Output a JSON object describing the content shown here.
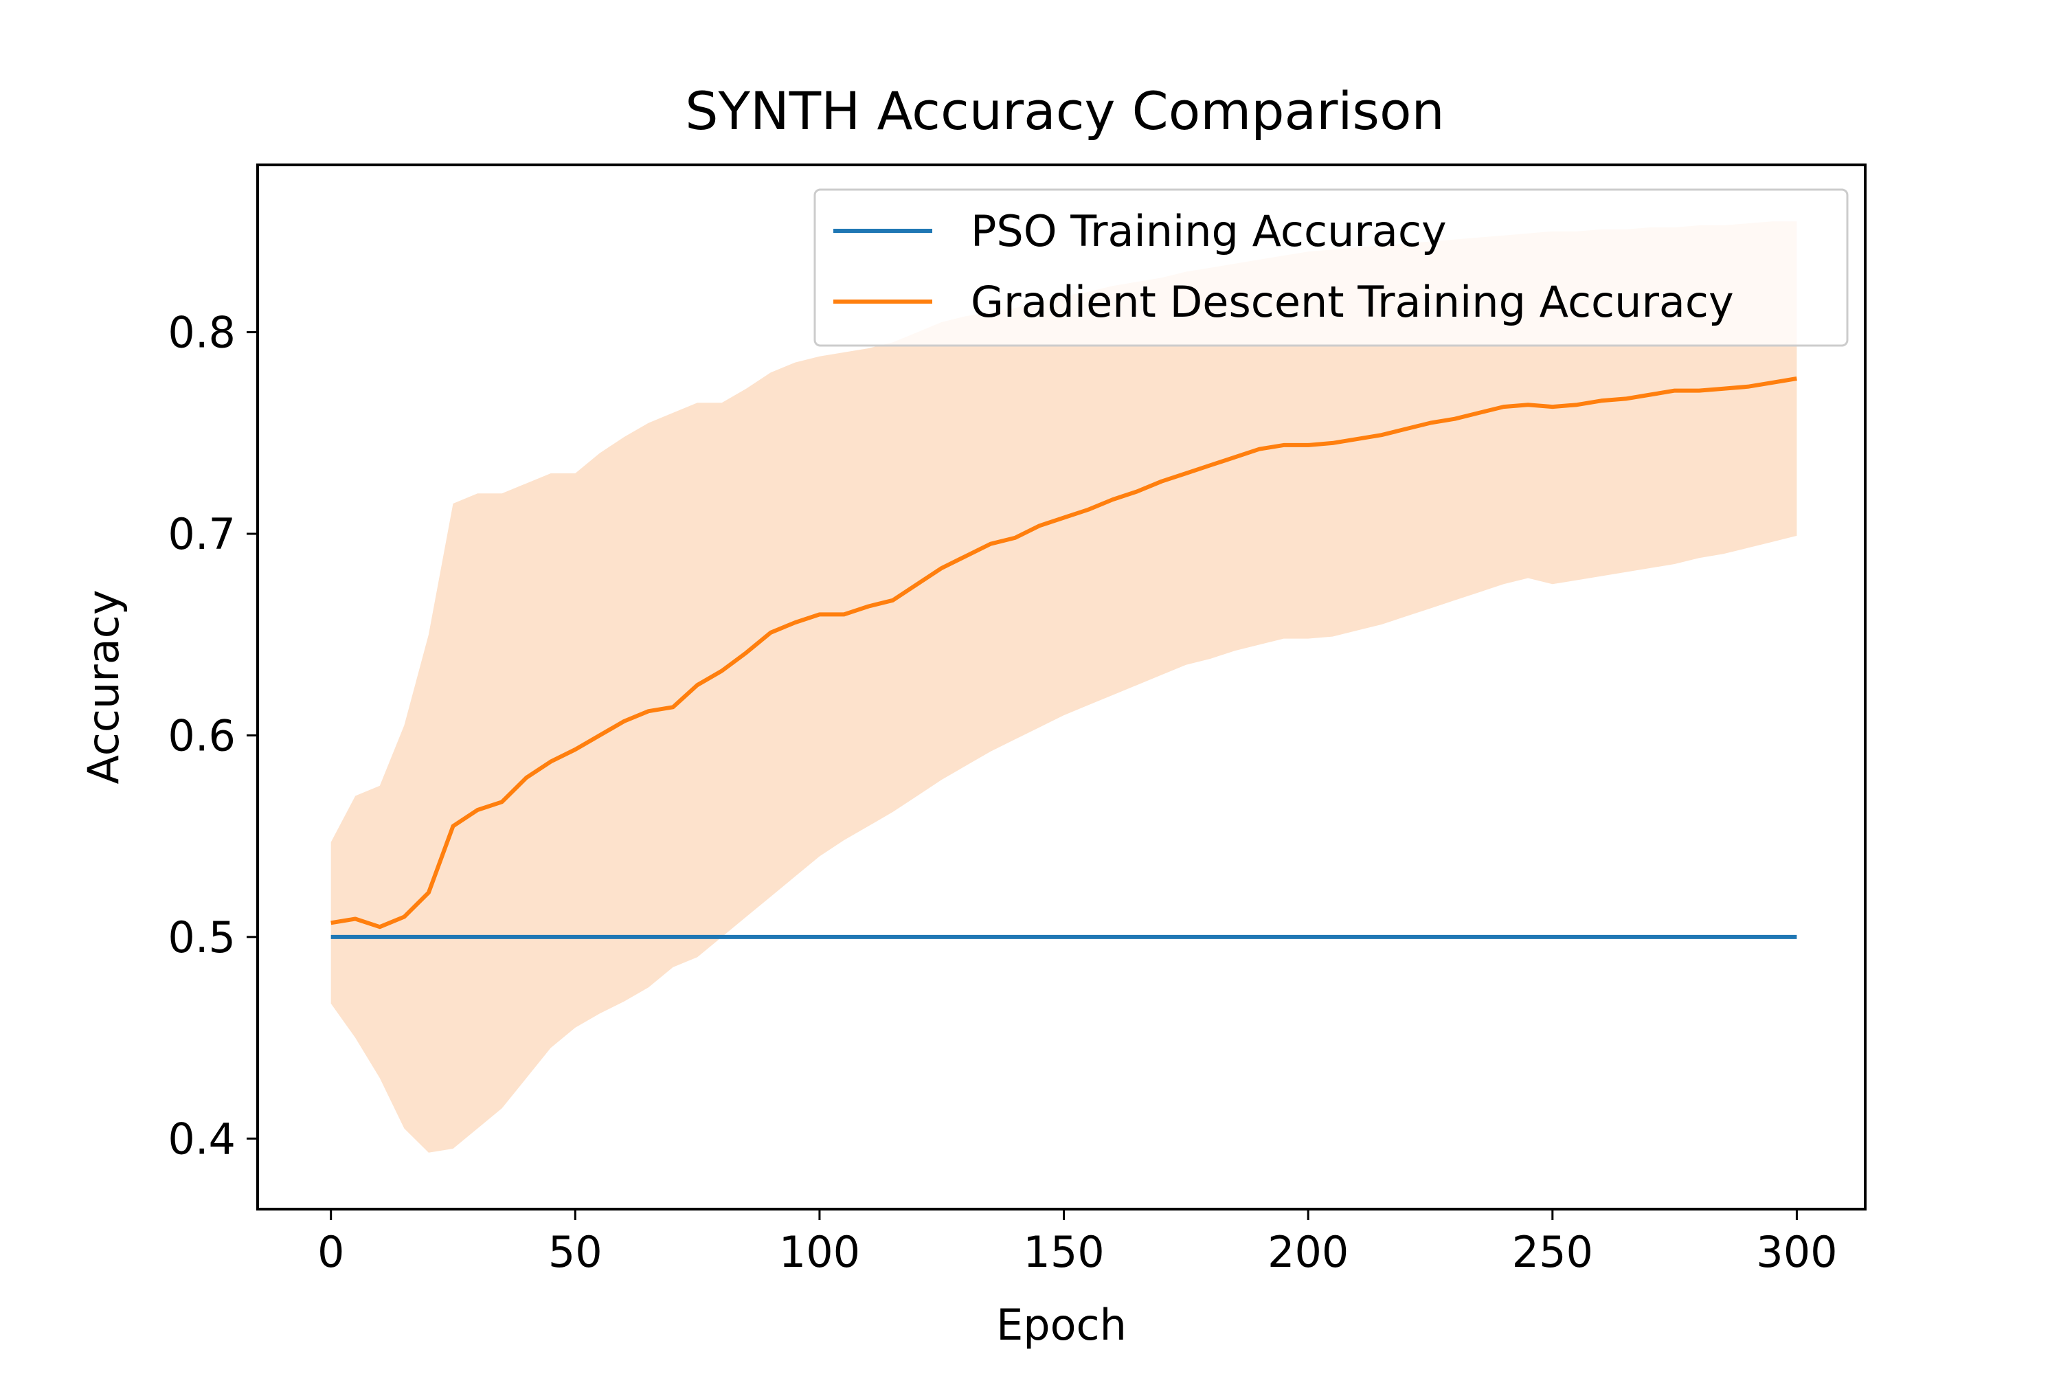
{
  "chart_data": {
    "type": "line",
    "title": "SYNTH Accuracy Comparison",
    "xlabel": "Epoch",
    "ylabel": "Accuracy",
    "xlim": [
      -15,
      314
    ],
    "ylim": [
      0.365,
      0.883
    ],
    "xticks": [
      0,
      50,
      100,
      150,
      200,
      250,
      300
    ],
    "yticks": [
      0.4,
      0.5,
      0.6,
      0.7,
      0.8
    ],
    "xtick_labels": [
      "0",
      "50",
      "100",
      "150",
      "200",
      "250",
      "300"
    ],
    "ytick_labels": [
      "0.4",
      "0.5",
      "0.6",
      "0.7",
      "0.8"
    ],
    "grid": false,
    "legend_position": "top-right",
    "series": [
      {
        "name": "PSO Training Accuracy",
        "color": "#1f77b4",
        "x": [
          0,
          300
        ],
        "y": [
          0.5,
          0.5
        ]
      },
      {
        "name": "Gradient Descent Training Accuracy",
        "color": "#ff7f0e",
        "band_color": "#fde2cc",
        "x": [
          0,
          5,
          10,
          15,
          20,
          25,
          30,
          35,
          40,
          45,
          50,
          55,
          60,
          65,
          70,
          75,
          80,
          85,
          90,
          95,
          100,
          105,
          110,
          115,
          120,
          125,
          130,
          135,
          140,
          145,
          150,
          155,
          160,
          165,
          170,
          175,
          180,
          185,
          190,
          195,
          200,
          205,
          210,
          215,
          220,
          225,
          230,
          235,
          240,
          245,
          250,
          255,
          260,
          265,
          270,
          275,
          280,
          285,
          290,
          295,
          300
        ],
        "y": [
          0.507,
          0.509,
          0.505,
          0.51,
          0.522,
          0.555,
          0.563,
          0.567,
          0.579,
          0.587,
          0.593,
          0.6,
          0.607,
          0.612,
          0.614,
          0.625,
          0.632,
          0.641,
          0.651,
          0.656,
          0.66,
          0.66,
          0.664,
          0.667,
          0.675,
          0.683,
          0.689,
          0.695,
          0.698,
          0.704,
          0.708,
          0.712,
          0.717,
          0.721,
          0.726,
          0.73,
          0.734,
          0.738,
          0.742,
          0.744,
          0.744,
          0.745,
          0.747,
          0.749,
          0.752,
          0.755,
          0.757,
          0.76,
          0.763,
          0.764,
          0.763,
          0.764,
          0.766,
          0.767,
          0.769,
          0.771,
          0.771,
          0.772,
          0.773,
          0.775,
          0.777
        ],
        "upper": [
          0.547,
          0.57,
          0.575,
          0.605,
          0.65,
          0.715,
          0.72,
          0.72,
          0.725,
          0.73,
          0.73,
          0.74,
          0.748,
          0.755,
          0.76,
          0.765,
          0.765,
          0.772,
          0.78,
          0.785,
          0.788,
          0.79,
          0.792,
          0.795,
          0.8,
          0.805,
          0.808,
          0.81,
          0.812,
          0.815,
          0.818,
          0.82,
          0.823,
          0.825,
          0.827,
          0.83,
          0.832,
          0.834,
          0.836,
          0.838,
          0.84,
          0.841,
          0.842,
          0.843,
          0.844,
          0.845,
          0.846,
          0.847,
          0.848,
          0.849,
          0.85,
          0.85,
          0.851,
          0.851,
          0.852,
          0.852,
          0.853,
          0.853,
          0.854,
          0.855,
          0.855
        ],
        "lower": [
          0.467,
          0.45,
          0.43,
          0.405,
          0.393,
          0.395,
          0.405,
          0.415,
          0.43,
          0.445,
          0.455,
          0.462,
          0.468,
          0.475,
          0.485,
          0.49,
          0.5,
          0.51,
          0.52,
          0.53,
          0.54,
          0.548,
          0.555,
          0.562,
          0.57,
          0.578,
          0.585,
          0.592,
          0.598,
          0.604,
          0.61,
          0.615,
          0.62,
          0.625,
          0.63,
          0.635,
          0.638,
          0.642,
          0.645,
          0.648,
          0.648,
          0.649,
          0.652,
          0.655,
          0.659,
          0.663,
          0.667,
          0.671,
          0.675,
          0.678,
          0.675,
          0.677,
          0.679,
          0.681,
          0.683,
          0.685,
          0.688,
          0.69,
          0.693,
          0.696,
          0.699
        ]
      }
    ]
  }
}
